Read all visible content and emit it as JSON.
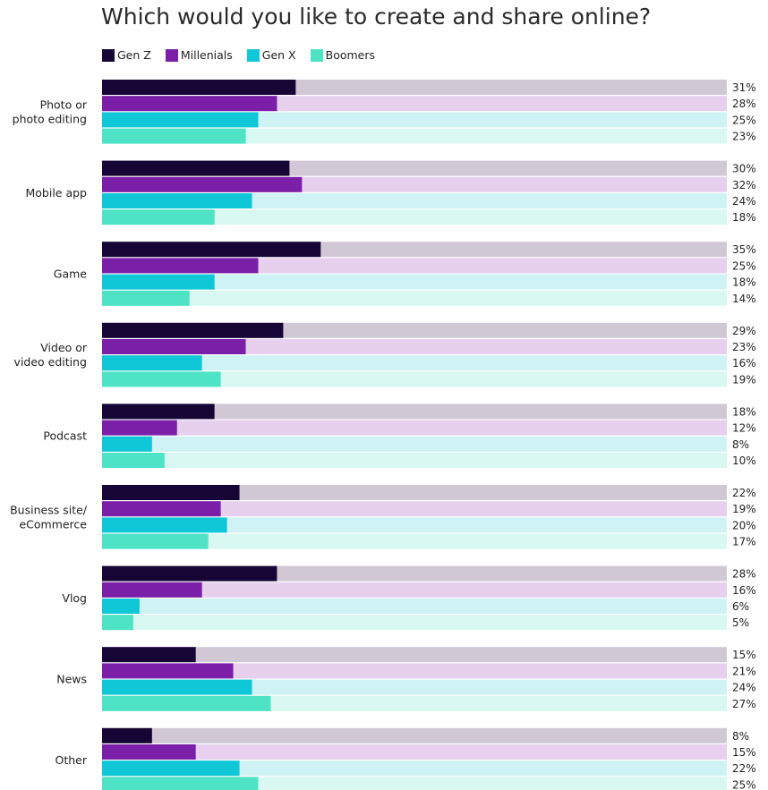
{
  "title": "Which would you like to create and share online?",
  "colors": {
    "series": [
      "#160635",
      "#7b1fa8",
      "#0fc7d6",
      "#4de3c4"
    ],
    "tracks": [
      "#d1c8d6",
      "#e6d0ee",
      "#cff3f5",
      "#d9f8f2"
    ]
  },
  "chart_data": {
    "type": "bar",
    "orientation": "horizontal",
    "title": "Which would you like to create and share online?",
    "xlim": [
      0,
      100
    ],
    "legend": "top-left",
    "unit": "%",
    "categories": [
      [
        "Photo or",
        "photo editing"
      ],
      [
        "Mobile app"
      ],
      [
        "Game"
      ],
      [
        "Video or",
        "video editing"
      ],
      [
        "Podcast"
      ],
      [
        "Business site/",
        "eCommerce"
      ],
      [
        "Vlog"
      ],
      [
        "News"
      ],
      [
        "Other"
      ]
    ],
    "series": [
      {
        "name": "Gen Z",
        "values": [
          31,
          30,
          35,
          29,
          18,
          22,
          28,
          15,
          8
        ]
      },
      {
        "name": "Millenials",
        "values": [
          28,
          32,
          25,
          23,
          12,
          19,
          16,
          21,
          15
        ]
      },
      {
        "name": "Gen X",
        "values": [
          25,
          24,
          18,
          16,
          8,
          20,
          6,
          24,
          22
        ]
      },
      {
        "name": "Boomers",
        "values": [
          23,
          18,
          14,
          19,
          10,
          17,
          5,
          27,
          25
        ]
      }
    ]
  }
}
